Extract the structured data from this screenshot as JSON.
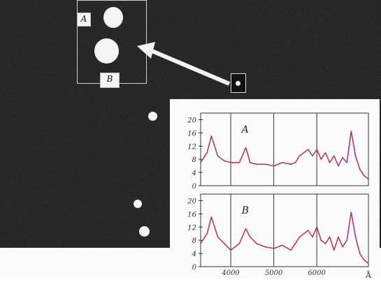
{
  "photo": {
    "box_labels": [
      "A",
      "B"
    ]
  },
  "colors": {
    "sky": "#0c0c0c",
    "star": "#f4f4f4",
    "trace": "#b23a6a",
    "grid": "#333333"
  },
  "chart_data": {
    "type": "line",
    "x_unit": "Å",
    "xlim": [
      3300,
      7200
    ],
    "x_ticks": [
      "4000",
      "5000",
      "6000"
    ],
    "panels": [
      {
        "label": "A",
        "ylim": [
          0,
          22
        ],
        "y_ticks": [
          "0",
          "4",
          "8",
          "12",
          "16",
          "20"
        ],
        "x": [
          3300,
          3450,
          3550,
          3700,
          3850,
          4000,
          4200,
          4350,
          4450,
          4600,
          4800,
          5000,
          5200,
          5400,
          5500,
          5600,
          5800,
          5900,
          6000,
          6100,
          6200,
          6300,
          6400,
          6500,
          6600,
          6700,
          6800,
          6900,
          7000,
          7100,
          7200
        ],
        "y": [
          7,
          10,
          15,
          9,
          7.5,
          7,
          7,
          11.5,
          7,
          6.5,
          6.5,
          6,
          7,
          6.5,
          7,
          9,
          11,
          9,
          11,
          8,
          10,
          7,
          9,
          6,
          8.5,
          7,
          16.5,
          9,
          5,
          3,
          2
        ]
      },
      {
        "label": "B",
        "ylim": [
          0,
          22
        ],
        "y_ticks": [
          "0",
          "4",
          "8",
          "12",
          "16",
          "20"
        ],
        "x": [
          3300,
          3450,
          3550,
          3700,
          3850,
          4000,
          4200,
          4350,
          4450,
          4600,
          4800,
          5000,
          5200,
          5400,
          5500,
          5600,
          5800,
          5900,
          6000,
          6100,
          6200,
          6300,
          6400,
          6500,
          6600,
          6700,
          6800,
          6900,
          7000,
          7100,
          7200
        ],
        "y": [
          7,
          10,
          15,
          9,
          7,
          5,
          7,
          11.5,
          9,
          7,
          6,
          5.5,
          6.5,
          5,
          7,
          9,
          11,
          9,
          12,
          8,
          7,
          9,
          5,
          9,
          6,
          8,
          16.5,
          9,
          4,
          2,
          1
        ]
      }
    ],
    "grid": true
  }
}
